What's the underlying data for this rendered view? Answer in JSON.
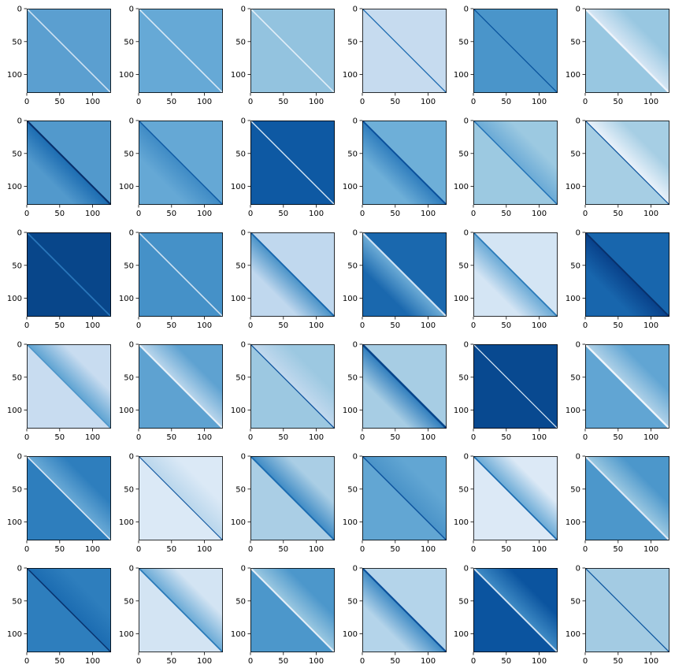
{
  "chart_data": {
    "type": "heatmap",
    "layout": {
      "rows": 6,
      "cols": 6
    },
    "colormap": "Blues",
    "matrix_size": 128,
    "xlim": [
      0,
      128
    ],
    "ylim": [
      128,
      0
    ],
    "xticks": [
      0,
      50,
      100
    ],
    "yticks": [
      0,
      50,
      100
    ],
    "xtick_labels": [
      "0",
      "50",
      "100"
    ],
    "ytick_labels": [
      "0",
      "50",
      "100"
    ],
    "panels": [
      {
        "bg": "#5b9fd0",
        "diag": "#cfe1f2",
        "diag_w": 1.6,
        "band_side": "none"
      },
      {
        "bg": "#66a9d6",
        "diag": "#d8e8f5",
        "diag_w": 1.6,
        "band_side": "none"
      },
      {
        "bg": "#93c3df",
        "diag": "#e3eef8",
        "diag_w": 1.6,
        "band_side": "none"
      },
      {
        "bg": "#c6dbef",
        "diag": "#1666ad",
        "diag_w": 1.3,
        "band_side": "none"
      },
      {
        "bg": "#4a95ca",
        "diag": "#08519c",
        "diag_w": 1.3,
        "band_side": "none"
      },
      {
        "bg": "#98c7e1",
        "diag": "#eef4fb",
        "diag_w": 2.4,
        "band_side": "upper",
        "band": "#d6e6f4"
      },
      {
        "bg": "#5299cc",
        "diag": "#08306b",
        "diag_w": 2.2,
        "band_side": "lower",
        "band": "#1c6cb1"
      },
      {
        "bg": "#65a8d5",
        "diag": "#0f5aa3",
        "diag_w": 1.5,
        "band_side": "lower",
        "band": "#3f8bc5"
      },
      {
        "bg": "#0e59a3",
        "diag": "#d6e6f4",
        "diag_w": 1.4,
        "band_side": "none"
      },
      {
        "bg": "#6eafd8",
        "diag": "#0b509b",
        "diag_w": 2.0,
        "band_side": "lower",
        "band": "#2f7dbd"
      },
      {
        "bg": "#9cc9e1",
        "diag": "#2171b5",
        "diag_w": 1.5,
        "band_side": "upper",
        "band": "#6aaad6"
      },
      {
        "bg": "#a6cee4",
        "diag": "#08519c",
        "diag_w": 1.2,
        "band_side": "upper",
        "band": "#eaf2fa"
      },
      {
        "bg": "#08468a",
        "diag": "#2a76ba",
        "diag_w": 1.8,
        "band_side": "none"
      },
      {
        "bg": "#4591c8",
        "diag": "#d0e2f2",
        "diag_w": 1.6,
        "band_side": "none"
      },
      {
        "bg": "#c0d8ee",
        "diag": "#1a68ae",
        "diag_w": 2.0,
        "band_side": "lower",
        "band": "#4a93c8"
      },
      {
        "bg": "#1a68ae",
        "diag": "#cfe2f3",
        "diag_w": 2.2,
        "band_side": "lower",
        "band": "#6eadd7"
      },
      {
        "bg": "#d4e5f4",
        "diag": "#2a7ab9",
        "diag_w": 1.8,
        "band_side": "lower",
        "band": "#6aaad6"
      },
      {
        "bg": "#1866ad",
        "diag": "#08306b",
        "diag_w": 2.0,
        "band_side": "lower",
        "band": "#08418a"
      },
      {
        "bg": "#c8dcf0",
        "diag": "#4a93c8",
        "diag_w": 1.4,
        "band_side": "upper",
        "band": "#5ea3d2"
      },
      {
        "bg": "#5ea2d1",
        "diag": "#e6f0f9",
        "diag_w": 2.2,
        "band_side": "upper",
        "band": "#b9d6ec"
      },
      {
        "bg": "#9cc8e1",
        "diag": "#0b509b",
        "diag_w": 1.3,
        "band_side": "upper",
        "band": "#c2d9ee"
      },
      {
        "bg": "#a7cde4",
        "diag": "#08458a",
        "diag_w": 2.6,
        "band_side": "lower",
        "band": "#2f7dbd"
      },
      {
        "bg": "#084990",
        "diag": "#dbe9f6",
        "diag_w": 1.2,
        "band_side": "none"
      },
      {
        "bg": "#61a5d3",
        "diag": "#eef5fb",
        "diag_w": 2.4,
        "band_side": "upper",
        "band": "#b0d2e8"
      },
      {
        "bg": "#2e7ebd",
        "diag": "#dde9f6",
        "diag_w": 1.6,
        "band_side": "upper",
        "band": "#6aaad6"
      },
      {
        "bg": "#dbe9f6",
        "diag": "#08519c",
        "diag_w": 1.1,
        "band_side": "upper",
        "band": "#b9d6ec"
      },
      {
        "bg": "#aacee5",
        "diag": "#1c6cb1",
        "diag_w": 2.0,
        "band_side": "upper",
        "band": "#3f8bc5"
      },
      {
        "bg": "#62a6d3",
        "diag": "#0b509b",
        "diag_w": 1.4,
        "band_side": "upper",
        "band": "#4a93c8"
      },
      {
        "bg": "#dce9f6",
        "diag": "#1c6cb1",
        "diag_w": 1.8,
        "band_side": "upper",
        "band": "#6aaad6"
      },
      {
        "bg": "#4c97cb",
        "diag": "#dde9f6",
        "diag_w": 2.2,
        "band_side": "upper",
        "band": "#9bc8e1"
      },
      {
        "bg": "#2e7ebd",
        "diag": "#08306b",
        "diag_w": 1.5,
        "band_side": "upper",
        "band": "#1c6cb1"
      },
      {
        "bg": "#d3e4f3",
        "diag": "#2a7ab9",
        "diag_w": 1.8,
        "band_side": "upper",
        "band": "#6aaad6"
      },
      {
        "bg": "#4c97cb",
        "diag": "#e3eef8",
        "diag_w": 2.2,
        "band_side": "upper",
        "band": "#9bc8e1"
      },
      {
        "bg": "#b4d4ea",
        "diag": "#0b509b",
        "diag_w": 2.2,
        "band_side": "lower",
        "band": "#3f8bc5"
      },
      {
        "bg": "#0b549f",
        "diag": "#cfe2f3",
        "diag_w": 2.0,
        "band_side": "upper",
        "band": "#3f8bc5"
      },
      {
        "bg": "#a3cbe3",
        "diag": "#08519c",
        "diag_w": 1.2,
        "band_side": "none"
      }
    ]
  }
}
